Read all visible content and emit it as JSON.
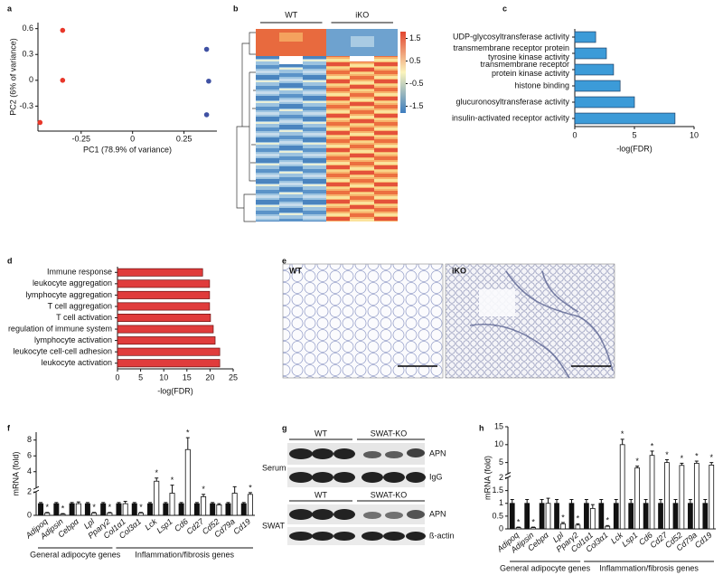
{
  "chart_data": [
    {
      "label": "a",
      "type": "scatter",
      "xlabel": "PC1 (78.9% of variance)",
      "ylabel": "PC2 (6% of variance)",
      "xlim": [
        -0.46,
        0.41
      ],
      "ylim": [
        -0.59,
        0.67
      ],
      "xticks": [
        -0.25,
        0,
        0.25
      ],
      "yticks": [
        -0.3,
        0,
        0.3,
        0.6
      ],
      "series": [
        {
          "color": "#e8372a",
          "x": [
            -0.34,
            -0.34,
            -0.45
          ],
          "values": [
            0.58,
            0,
            -0.49
          ]
        },
        {
          "color": "#3f51a3",
          "x": [
            0.36,
            0.37,
            0.36
          ],
          "values": [
            0.36,
            -0.01,
            -0.4
          ]
        }
      ]
    },
    {
      "label": "b",
      "type": "heatmap",
      "groups": [
        "WT",
        "iKO"
      ],
      "clim": [
        -1.8,
        1.8
      ],
      "cticks": [
        1.5,
        0.5,
        -0.5,
        -1.5
      ],
      "colors": [
        "#3d7dbf",
        "#fbf4bc",
        "#e2452f"
      ]
    },
    {
      "label": "c",
      "type": "hbar",
      "xlabel": "-log(FDR)",
      "xlim": [
        0,
        10
      ],
      "xticks": [
        0,
        5,
        10
      ],
      "color": "#3c9bd8",
      "edgecolor": "#1b3f66",
      "categories": [
        "UDP-glycosyltransferase activity",
        "transmembrane receptor protein\ntyrosine kinase activity",
        "transmembrane receptor\nprotein kinase activity",
        "histone binding",
        "glucuronosyltransferase activity",
        "insulin-activated receptor activity"
      ],
      "values": [
        1.75,
        2.65,
        3.25,
        3.8,
        5.0,
        8.4
      ]
    },
    {
      "label": "d",
      "type": "hbar",
      "xlabel": "-log(FDR)",
      "xlim": [
        0,
        25
      ],
      "xticks": [
        0,
        5,
        10,
        15,
        20,
        25
      ],
      "color": "#e03c3c",
      "edgecolor": "#6a1010",
      "categories": [
        "Immune response",
        "leukocyte aggregation",
        "lymphocyte aggregation",
        "T cell aggregation",
        "T cell activation",
        "regulation of immune system",
        "lymphocyte activation",
        "leukocyte cell-cell adhesion",
        "leukocyte activation"
      ],
      "values": [
        18.4,
        19.9,
        19.9,
        19.9,
        20.1,
        20.7,
        21.1,
        22.1,
        22.1
      ]
    },
    {
      "label": "f",
      "type": "bar",
      "ylabel": "mRNA (fold)",
      "ylim": [
        0,
        9
      ],
      "ybreak": 2,
      "yticks": [
        0,
        2,
        4,
        6,
        8
      ],
      "categories": [
        "Adipoq",
        "Adipsin",
        "Cebpα",
        "Lpl",
        "Pparγ2",
        "Col1α1",
        "Col3α1",
        "Lck",
        "Lsp1",
        "Cd6",
        "Cd27",
        "Cd52",
        "Cd79a",
        "Cd19"
      ],
      "groups": [
        {
          "label": "General adipocyte genes",
          "from": 0,
          "to": 4
        },
        {
          "label": "Inflammation/fibrosis genes",
          "from": 5,
          "to": 13
        }
      ],
      "series": [
        {
          "color": "#111111",
          "values": [
            1,
            1,
            1,
            1,
            1,
            1,
            1,
            1,
            1,
            1,
            1,
            1,
            1,
            1
          ],
          "errors": [
            0.1,
            0.1,
            0.1,
            0.1,
            0.1,
            0.1,
            0.1,
            0.1,
            0.1,
            0.1,
            0.1,
            0.1,
            0.1,
            0.1
          ]
        },
        {
          "color": "#ffffff",
          "values": [
            0.2,
            0.1,
            1.0,
            0.2,
            0.2,
            1.0,
            0.2,
            2.8,
            1.9,
            6.8,
            1.6,
            0.9,
            1.9,
            1.8
          ],
          "errors": [
            0.05,
            0.05,
            0.15,
            0.05,
            0.05,
            0.2,
            0.05,
            0.4,
            0.4,
            1.5,
            0.2,
            0.1,
            0.2,
            0.15
          ],
          "annotations": [
            "*",
            "*",
            null,
            "*",
            "*",
            null,
            "*",
            "*",
            "*",
            "*",
            "*",
            null,
            null,
            "*"
          ]
        }
      ]
    },
    {
      "label": "h",
      "type": "bar",
      "ylabel": "mRNA (fold)",
      "ylim": [
        0,
        15
      ],
      "ybreak": 2,
      "yticks": [
        0,
        0.5,
        1,
        1.5,
        2,
        5,
        10,
        15
      ],
      "categories": [
        "Adipoq",
        "Adipsin",
        "Cebpα",
        "Lpl",
        "Pparγ2",
        "Col1α1",
        "Col3α1",
        "Lck",
        "Lsp1",
        "Cd6",
        "Cd27",
        "Cd52",
        "Cd79a",
        "Cd19"
      ],
      "groups": [
        {
          "label": "General adipocyte genes",
          "from": 0,
          "to": 4
        },
        {
          "label": "Inflammation/fibrosis genes",
          "from": 5,
          "to": 13
        }
      ],
      "series": [
        {
          "color": "#111111",
          "values": [
            1,
            1,
            1,
            1,
            1,
            1,
            1,
            1,
            1,
            1,
            1,
            1,
            1,
            1
          ],
          "errors": [
            0.15,
            0.15,
            0.15,
            0.15,
            0.15,
            0.15,
            0.15,
            0.15,
            0.15,
            0.15,
            0.15,
            0.15,
            0.15,
            0.15
          ]
        },
        {
          "color": "#ffffff",
          "values": [
            0.05,
            0.05,
            1.0,
            0.2,
            0.15,
            0.8,
            0.1,
            10,
            3.5,
            7,
            5,
            4.2,
            4.8,
            4.3
          ],
          "errors": [
            0.02,
            0.02,
            0.2,
            0.05,
            0.05,
            0.15,
            0.03,
            1.5,
            0.5,
            1.2,
            0.8,
            0.6,
            0.6,
            0.7
          ],
          "annotations": [
            "*",
            "*",
            null,
            "*",
            "*",
            null,
            "*",
            "*",
            "*",
            "*",
            "*",
            "*",
            "*",
            "*"
          ]
        }
      ]
    }
  ],
  "panel_e": {
    "label": "e",
    "left_label": "WT",
    "right_label": "iKO"
  },
  "panel_g": {
    "label": "g",
    "top_left": "WT",
    "top_right": "SWAT-KO",
    "bottom_left": "WT",
    "bottom_right": "SWAT-KO",
    "row1": "Serum",
    "row2": "SWAT",
    "band1": "APN",
    "band2": "IgG",
    "band3": "APN",
    "band4": "ß-actin"
  }
}
